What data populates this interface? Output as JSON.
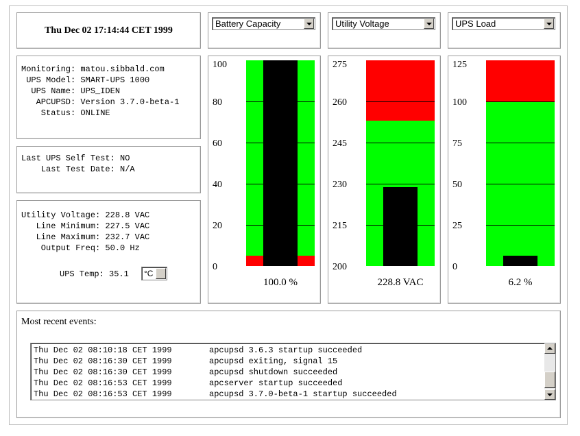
{
  "header": {
    "datetime": "Thu Dec 02 17:14:44 CET 1999"
  },
  "status": {
    "lines": [
      "Monitoring: matou.sibbald.com",
      " UPS Model: SMART-UPS 1000",
      "  UPS Name: UPS_IDEN",
      "   APCUPSD: Version 3.7.0-beta-1",
      "    Status: ONLINE"
    ]
  },
  "selftest": {
    "lines": [
      "Last UPS Self Test: NO",
      "    Last Test Date: N/A"
    ]
  },
  "voltage": {
    "lines": [
      "Utility Voltage: 228.8 VAC",
      "   Line Minimum: 227.5 VAC",
      "   Line Maximum: 232.7 VAC",
      "    Output Freq: 50.0 Hz"
    ],
    "temp_label": "UPS Temp: 35.1",
    "temp_unit": "°C"
  },
  "colors": {
    "ok": "#00ff00",
    "alarm": "#ff0000",
    "value": "#000000"
  },
  "gauges": [
    {
      "selector": "Battery Capacity",
      "ticks": [
        "100",
        "80",
        "60",
        "40",
        "20",
        "0"
      ],
      "min": 0,
      "max": 100,
      "red_below": 5,
      "value": 100.0,
      "caption": "100.0 %"
    },
    {
      "selector": "Utility Voltage",
      "ticks": [
        "275",
        "260",
        "245",
        "230",
        "215",
        "200"
      ],
      "min": 200,
      "max": 275,
      "red_above": 253,
      "value": 228.8,
      "caption": "228.8 VAC"
    },
    {
      "selector": "UPS Load",
      "ticks": [
        "125",
        "100",
        "75",
        "50",
        "25",
        "0"
      ],
      "min": 0,
      "max": 125,
      "red_above": 100,
      "value": 6.2,
      "caption": "6.2 %"
    }
  ],
  "events": {
    "title": "Most recent events:",
    "rows": [
      {
        "time": "Thu Dec 02 08:10:18 CET 1999",
        "msg": "apcupsd 3.6.3 startup succeeded"
      },
      {
        "time": "Thu Dec 02 08:16:30 CET 1999",
        "msg": "apcupsd exiting, signal 15"
      },
      {
        "time": "Thu Dec 02 08:16:30 CET 1999",
        "msg": "apcupsd shutdown succeeded"
      },
      {
        "time": "Thu Dec 02 08:16:53 CET 1999",
        "msg": "apcserver startup succeeded"
      },
      {
        "time": "Thu Dec 02 08:16:53 CET 1999",
        "msg": "apcupsd 3.7.0-beta-1 startup succeeded"
      }
    ]
  }
}
